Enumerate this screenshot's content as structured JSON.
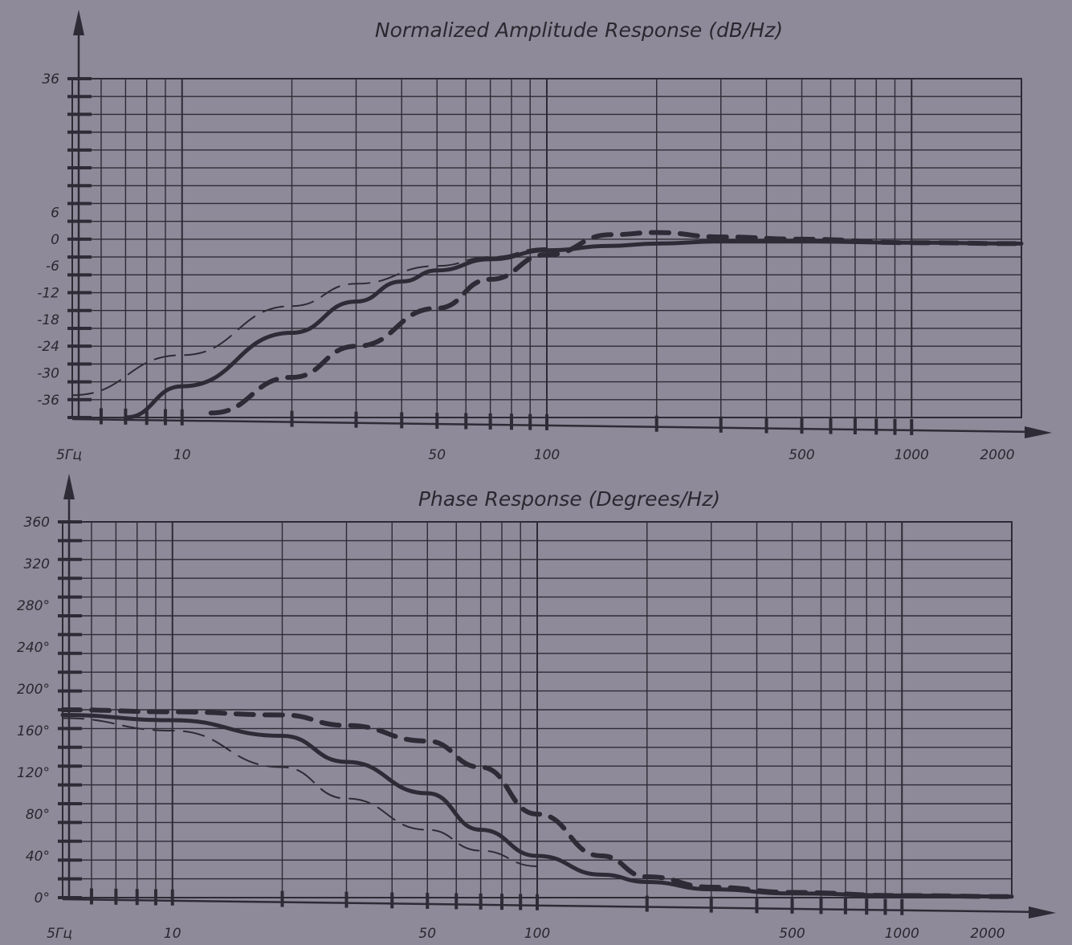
{
  "colors": {
    "background": "#8e8a99",
    "grid": "#2e2a36",
    "curve": "#2e2a36",
    "text": "#2b2730"
  },
  "chart_data": [
    {
      "type": "line",
      "title": "Normalized Amplitude Response (dB/Hz)",
      "x_scale": "log",
      "xlim": [
        5,
        2000
      ],
      "ylim": [
        -40,
        36
      ],
      "grid": true,
      "y_ticks": [
        {
          "value": 36,
          "label": "36"
        },
        {
          "value": 6,
          "label": "6"
        },
        {
          "value": 0,
          "label": "0"
        },
        {
          "value": -6,
          "label": "-6"
        },
        {
          "value": -12,
          "label": "-12"
        },
        {
          "value": -18,
          "label": "-18"
        },
        {
          "value": -24,
          "label": "-24"
        },
        {
          "value": -30,
          "label": "-30"
        },
        {
          "value": -36,
          "label": "-36"
        }
      ],
      "x_ticks": [
        {
          "value": 5,
          "label": "5Гц"
        },
        {
          "value": 10,
          "label": "10"
        },
        {
          "value": 50,
          "label": "50"
        },
        {
          "value": 100,
          "label": "100"
        },
        {
          "value": 500,
          "label": "500"
        },
        {
          "value": 1000,
          "label": "1000"
        },
        {
          "value": 2000,
          "label": "2000"
        }
      ],
      "series": [
        {
          "style": "solid",
          "x": [
            7,
            10,
            20,
            30,
            40,
            50,
            70,
            100,
            150,
            200,
            300,
            500,
            1000,
            2000
          ],
          "y": [
            -40,
            -33,
            -21,
            -14,
            -9.5,
            -7,
            -4.5,
            -2.5,
            -1.5,
            -1,
            -0.5,
            -0.5,
            -0.8,
            -1
          ]
        },
        {
          "style": "dashed-thick",
          "x": [
            12,
            20,
            30,
            50,
            70,
            100,
            150,
            200,
            300,
            500,
            1000,
            2000
          ],
          "y": [
            -39,
            -31,
            -24,
            -15.5,
            -9,
            -3.5,
            1,
            1.5,
            0.5,
            0,
            -0.8,
            -1
          ]
        },
        {
          "style": "dashed-thin",
          "x": [
            5,
            10,
            20,
            30,
            50,
            70,
            100
          ],
          "y": [
            -35,
            -26,
            -15,
            -10,
            -6,
            -4,
            -2
          ]
        }
      ]
    },
    {
      "type": "line",
      "title": "Phase Response (Degrees/Hz)",
      "x_scale": "log",
      "xlim": [
        5,
        2000
      ],
      "ylim": [
        0,
        360
      ],
      "grid": true,
      "y_ticks": [
        {
          "value": 360,
          "label": "360"
        },
        {
          "value": 320,
          "label": "320"
        },
        {
          "value": 280,
          "label": "280°"
        },
        {
          "value": 240,
          "label": "240°"
        },
        {
          "value": 200,
          "label": "200°"
        },
        {
          "value": 160,
          "label": "160°"
        },
        {
          "value": 120,
          "label": "120°"
        },
        {
          "value": 80,
          "label": "80°"
        },
        {
          "value": 40,
          "label": "40°"
        },
        {
          "value": 0,
          "label": "0°"
        }
      ],
      "x_ticks": [
        {
          "value": 5,
          "label": "5Гц"
        },
        {
          "value": 10,
          "label": "10"
        },
        {
          "value": 50,
          "label": "50"
        },
        {
          "value": 100,
          "label": "100"
        },
        {
          "value": 500,
          "label": "500"
        },
        {
          "value": 1000,
          "label": "1000"
        },
        {
          "value": 2000,
          "label": "2000"
        }
      ],
      "series": [
        {
          "style": "solid",
          "x": [
            5,
            10,
            20,
            30,
            50,
            70,
            100,
            150,
            200,
            300,
            500,
            1000,
            2000
          ],
          "y": [
            175,
            170,
            155,
            130,
            100,
            65,
            40,
            22,
            15,
            8,
            4,
            2,
            1
          ]
        },
        {
          "style": "dashed-thick",
          "x": [
            5,
            10,
            20,
            30,
            50,
            70,
            100,
            150,
            200,
            300,
            500,
            1000,
            2000
          ],
          "y": [
            180,
            178,
            175,
            165,
            150,
            125,
            80,
            40,
            20,
            10,
            5,
            2,
            1
          ]
        },
        {
          "style": "dashed-thin",
          "x": [
            5,
            10,
            20,
            30,
            50,
            70,
            100
          ],
          "y": [
            172,
            160,
            125,
            95,
            65,
            45,
            30
          ]
        }
      ]
    }
  ]
}
